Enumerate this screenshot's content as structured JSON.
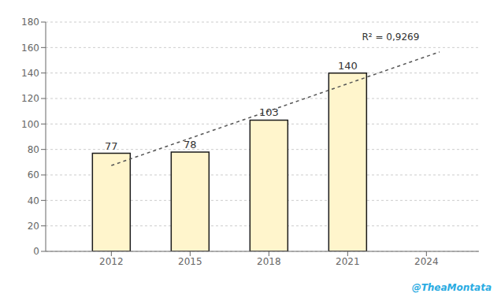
{
  "chart_data": {
    "type": "bar",
    "series": [
      {
        "type": "bar",
        "color": "#FFF5CC",
        "x": [
          2012,
          2015,
          2018,
          2021
        ],
        "values": [
          77,
          78,
          103,
          140
        ],
        "data_labels": true
      },
      {
        "type": "line",
        "color": "#555555",
        "line_style": "dashed",
        "x": [
          2012,
          2024.5
        ],
        "values": [
          67.4,
          156.56666666666666
        ]
      }
    ],
    "xlim": [
      2009.5,
      2026.0
    ],
    "xticks": [
      2012,
      2015,
      2018,
      2021,
      2024
    ],
    "ylim": [
      0,
      180
    ],
    "yticks": [
      0,
      20,
      40,
      60,
      80,
      100,
      120,
      140,
      160,
      180
    ],
    "grid": true,
    "annotations": [
      "R² = 0,9269",
      "@TheaMontata"
    ]
  }
}
